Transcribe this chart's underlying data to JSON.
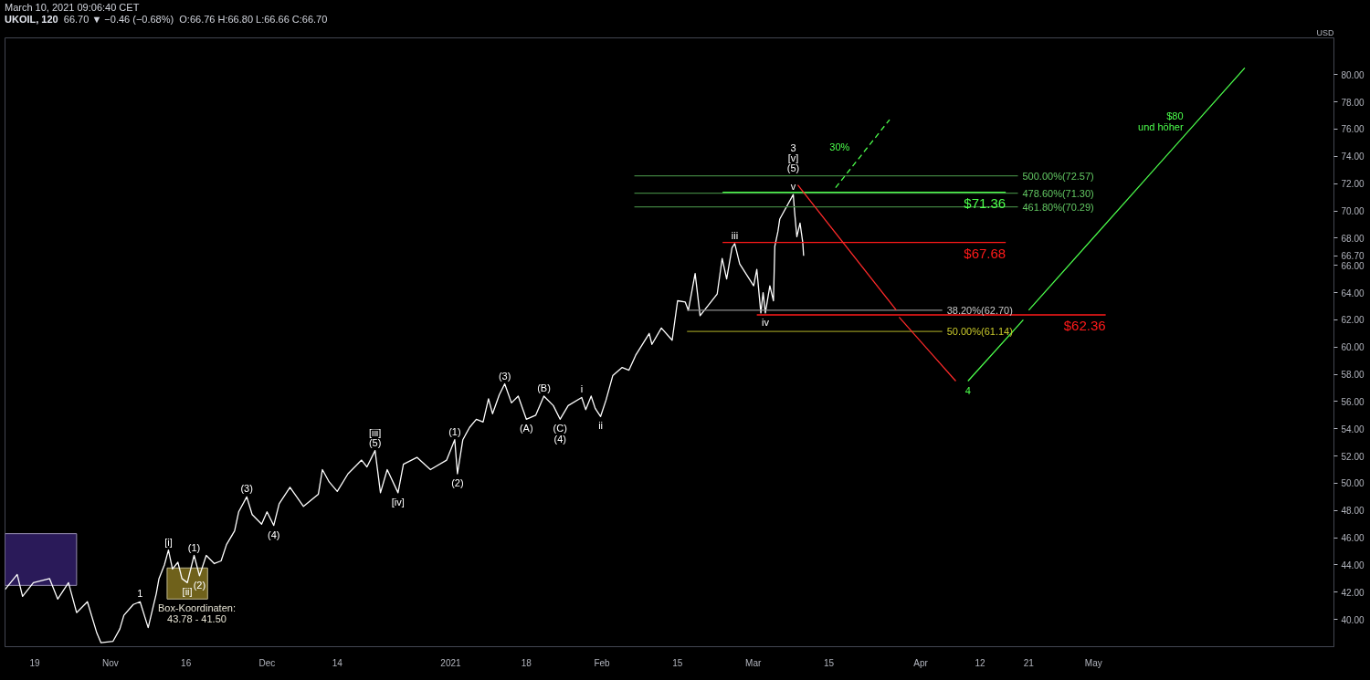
{
  "chart_data": {
    "type": "line",
    "title": "UKOIL, 120",
    "subtitle": "March 10, 2021 09:06:40 CET",
    "ylabel": "USD",
    "xlim": [
      "2020-10-13T12:00",
      "2021-06-16T12:00"
    ],
    "ylim": [
      38.0,
      82.7
    ],
    "xticks": [
      {
        "value": "2020-10-19",
        "label": "19"
      },
      {
        "value": "2020-11-02",
        "label": "Nov"
      },
      {
        "value": "2020-11-16",
        "label": "16"
      },
      {
        "value": "2020-12-01",
        "label": "Dec"
      },
      {
        "value": "2020-12-14",
        "label": "14"
      },
      {
        "value": "2021-01-04",
        "label": "2021"
      },
      {
        "value": "2021-01-18",
        "label": "18"
      },
      {
        "value": "2021-02-01",
        "label": "Feb"
      },
      {
        "value": "2021-02-15",
        "label": "15"
      },
      {
        "value": "2021-03-01",
        "label": "Mar"
      },
      {
        "value": "2021-03-15",
        "label": "15"
      },
      {
        "value": "2021-04-01",
        "label": "Apr"
      },
      {
        "value": "2021-04-12",
        "label": "12"
      },
      {
        "value": "2021-04-21",
        "label": "21"
      },
      {
        "value": "2021-05-03",
        "label": "May"
      }
    ],
    "yticks": [
      {
        "value": 40,
        "label": "40.00"
      },
      {
        "value": 42,
        "label": "42.00"
      },
      {
        "value": 44,
        "label": "44.00"
      },
      {
        "value": 46,
        "label": "46.00"
      },
      {
        "value": 48,
        "label": "48.00"
      },
      {
        "value": 50,
        "label": "50.00"
      },
      {
        "value": 52,
        "label": "52.00"
      },
      {
        "value": 54,
        "label": "54.00"
      },
      {
        "value": 56,
        "label": "56.00"
      },
      {
        "value": 58,
        "label": "58.00"
      },
      {
        "value": 60,
        "label": "60.00"
      },
      {
        "value": 62,
        "label": "62.00"
      },
      {
        "value": 64,
        "label": "64.00"
      },
      {
        "value": 66,
        "label": "66.00"
      },
      {
        "value": 66.7,
        "label": "66.70"
      },
      {
        "value": 68,
        "label": "68.00"
      },
      {
        "value": 70,
        "label": "70.00"
      },
      {
        "value": 72,
        "label": "72.00"
      },
      {
        "value": 74,
        "label": "74.00"
      },
      {
        "value": 76,
        "label": "76.00"
      },
      {
        "value": 78,
        "label": "78.00"
      },
      {
        "value": 80,
        "label": "80.00"
      }
    ],
    "series": [
      {
        "type": "area",
        "color": "#2f1d63",
        "x": [
          "2020-10-13T12:00",
          "2020-10-13T12:00",
          "2020-10-26T18:00",
          "2020-10-26T18:00",
          "2020-10-13T12:00"
        ],
        "values": [
          42.5,
          46.3,
          46.3,
          42.5,
          42.5
        ]
      },
      {
        "type": "area",
        "color": "#7b6c1e",
        "x": [
          "2020-11-12T12:00",
          "2020-11-12T12:00",
          "2020-11-20T00:00",
          "2020-11-20T00:00",
          "2020-11-12T12:00"
        ],
        "values": [
          41.5,
          43.78,
          43.78,
          41.5,
          41.5
        ]
      },
      {
        "color": "#ffffff",
        "x": [
          "2020-10-13T12:00",
          "2020-10-15T18:00",
          "2020-10-16T18:00",
          "2020-10-18T18:00",
          "2020-10-21T18:00",
          "2020-10-23T06:00",
          "2020-10-25T06:00",
          "2020-10-26T18:00",
          "2020-10-28T18:00",
          "2020-10-30T12:00",
          "2020-10-31T06:00",
          "2020-11-02T12:00",
          "2020-11-03T18:00",
          "2020-11-04T12:00",
          "2020-11-06T06:00",
          "2020-11-07T12:00",
          "2020-11-09T00:00",
          "2020-11-10T12:00",
          "2020-11-11T00:00",
          "2020-11-12T00:00",
          "2020-11-12T18:00",
          "2020-11-13T12:00",
          "2020-11-14T12:00",
          "2020-11-15T06:00",
          "2020-11-16T06:00",
          "2020-11-17T00:00",
          "2020-11-17T12:00",
          "2020-11-18T12:00",
          "2020-11-19T18:00",
          "2020-11-21T06:00",
          "2020-11-22T12:00",
          "2020-11-23T12:00",
          "2020-11-25T00:00",
          "2020-11-25T18:00",
          "2020-11-27T06:00",
          "2020-11-28T06:00",
          "2020-11-30T00:00",
          "2020-12-01T00:00",
          "2020-12-02T06:00",
          "2020-12-03T06:00",
          "2020-12-05T06:00",
          "2020-12-07T18:00",
          "2020-12-10T12:00",
          "2020-12-11T06:00",
          "2020-12-12T12:00",
          "2020-12-14T00:00",
          "2020-12-16T00:00",
          "2020-12-18T12:00",
          "2020-12-19T12:00",
          "2020-12-21T00:00",
          "2020-12-22T00:00",
          "2020-12-23T06:00",
          "2020-12-25T06:00",
          "2020-12-26T06:00",
          "2020-12-28T18:00",
          "2020-12-31T06:00",
          "2021-01-03T06:00",
          "2021-01-04T18:00",
          "2021-01-05T06:00",
          "2021-01-06T06:00",
          "2021-01-07T12:00",
          "2021-01-08T18:00",
          "2021-01-10T00:00",
          "2021-01-11T00:00",
          "2021-01-11T18:00",
          "2021-01-13T00:00",
          "2021-01-14T00:00",
          "2021-01-15T06:00",
          "2021-01-16T12:00",
          "2021-01-18T00:00",
          "2021-01-19T18:00",
          "2021-01-21T06:00",
          "2021-01-23T00:00",
          "2021-01-24T06:00",
          "2021-01-25T18:00",
          "2021-01-28T06:00",
          "2021-01-29T00:00",
          "2021-01-30T00:00",
          "2021-01-30T18:00",
          "2021-01-31T18:00",
          "2021-02-01T18:00",
          "2021-02-03T00:00",
          "2021-02-04T18:00",
          "2021-02-06T00:00",
          "2021-02-07T06:00",
          "2021-02-09T18:00",
          "2021-02-10T06:00",
          "2021-02-12T00:00",
          "2021-02-14T00:00",
          "2021-02-15T00:00",
          "2021-02-16T10:00",
          "2021-02-17T00:00",
          "2021-02-18T06:00",
          "2021-02-19T04:00",
          "2021-02-22T08:00",
          "2021-02-23T06:00",
          "2021-02-24T02:00",
          "2021-02-25T02:00",
          "2021-02-25T14:00",
          "2021-02-26T12:00",
          "2021-03-01T02:00",
          "2021-03-01T16:00",
          "2021-03-02T10:00",
          "2021-03-02T20:00",
          "2021-03-03T06:00",
          "2021-03-04T02:00",
          "2021-03-04T18:00",
          "2021-03-05T00:00",
          "2021-03-05T14:00",
          "2021-03-05T22:00",
          "2021-03-08T10:00",
          "2021-03-08T16:00",
          "2021-03-09T02:00",
          "2021-03-09T16:00",
          "2021-03-10T04:00",
          "2021-03-10T08:00"
        ],
        "values": [
          42.2,
          43.3,
          41.7,
          42.7,
          43.0,
          41.5,
          42.7,
          40.5,
          41.3,
          39.0,
          38.3,
          38.4,
          39.3,
          40.3,
          41.1,
          41.3,
          39.4,
          41.9,
          43.0,
          44.0,
          45.1,
          43.7,
          44.2,
          43.0,
          42.7,
          43.9,
          44.7,
          43.2,
          44.7,
          44.1,
          44.3,
          45.5,
          46.5,
          47.9,
          49.0,
          47.7,
          47.0,
          47.9,
          46.9,
          48.5,
          49.7,
          48.3,
          49.2,
          51.0,
          50.1,
          49.4,
          50.7,
          51.7,
          51.2,
          52.4,
          49.3,
          51.0,
          49.3,
          51.4,
          51.9,
          51.0,
          51.7,
          53.2,
          50.7,
          53.2,
          54.1,
          54.7,
          54.5,
          56.2,
          55.1,
          56.5,
          57.3,
          55.9,
          56.4,
          54.7,
          55.0,
          56.4,
          55.7,
          54.7,
          55.7,
          56.3,
          55.4,
          56.4,
          55.5,
          54.9,
          56.1,
          57.9,
          58.5,
          58.3,
          59.4,
          61.0,
          60.2,
          61.4,
          60.5,
          63.4,
          63.3,
          62.7,
          65.4,
          62.3,
          63.9,
          66.5,
          65.0,
          67.3,
          67.6,
          66.1,
          64.5,
          65.7,
          62.5,
          64.0,
          62.5,
          64.5,
          63.4,
          67.4,
          68.5,
          69.4,
          71.2,
          69.9,
          68.1,
          69.1,
          67.7,
          66.7
        ]
      },
      {
        "color": "#3f7f3f",
        "x": [
          "2021-02-07T00:00",
          "2021-04-19T00:00"
        ],
        "values": [
          72.57,
          72.57
        ]
      },
      {
        "color": "#3f7f3f",
        "x": [
          "2021-02-07T00:00",
          "2021-04-19T00:00"
        ],
        "values": [
          71.3,
          71.3
        ]
      },
      {
        "color": "#3f7f3f",
        "x": [
          "2021-02-07T00:00",
          "2021-04-19T00:00"
        ],
        "values": [
          70.29,
          70.29
        ]
      },
      {
        "color": "#8c8c8c",
        "x": [
          "2021-02-16T18:00",
          "2021-04-05T00:00"
        ],
        "values": [
          62.7,
          62.7
        ]
      },
      {
        "color": "#8f8f1f",
        "x": [
          "2021-02-16T18:00",
          "2021-04-05T00:00"
        ],
        "values": [
          61.14,
          61.14
        ]
      },
      {
        "name": "$71.36",
        "color": "#4cff4c",
        "x": [
          "2021-02-23T08:00",
          "2021-04-16T18:00"
        ],
        "values": [
          71.36,
          71.36
        ]
      },
      {
        "name": "$67.68",
        "color": "#ff1a1a",
        "x": [
          "2021-02-23T08:00",
          "2021-04-16T18:00"
        ],
        "values": [
          67.68,
          67.68
        ]
      },
      {
        "name": "$62.36",
        "color": "#ff1a1a",
        "x": [
          "2021-03-01T16:00",
          "2021-05-05T06:00"
        ],
        "values": [
          62.36,
          62.36
        ]
      },
      {
        "color": "#ff2a2a",
        "x": [
          "2021-03-09T06:00",
          "2021-03-27T12:00"
        ],
        "values": [
          71.9,
          62.7
        ]
      },
      {
        "color": "#ff2a2a",
        "x": [
          "2021-03-28T00:00",
          "2021-04-07T12:00"
        ],
        "values": [
          62.2,
          57.5
        ]
      },
      {
        "color": "#4cff4c",
        "x": [
          "2021-04-09T18:00",
          "2021-04-20T00:00"
        ],
        "values": [
          57.5,
          62.0
        ]
      },
      {
        "color": "#4cff4c",
        "x": [
          "2021-04-21T00:00",
          "2021-05-31T00:00"
        ],
        "values": [
          62.7,
          80.5
        ]
      },
      {
        "color": "#4cff4c",
        "line_style": "dashed",
        "x": [
          "2021-03-16T06:00",
          "2021-03-26T06:00"
        ],
        "values": [
          71.7,
          76.7
        ]
      }
    ],
    "annotations": [
      "66.70 ▼ −0.46 (−0.68%)",
      "O:66.76 H:66.80 L:66.66 C:66.70",
      {
        "text": "1",
        "x": "2020-11-07T12:00",
        "y": 41.3
      },
      {
        "text": "[i]",
        "x": "2020-11-12T18:00",
        "y": 45.1
      },
      {
        "text": "(1)",
        "x": "2020-11-17T12:00",
        "y": 44.7
      },
      {
        "text": "[ii]",
        "x": "2020-11-16T06:00",
        "y": 42.7
      },
      {
        "text": "(2)",
        "x": "2020-11-18T12:00",
        "y": 43.2
      },
      {
        "text": "Box-Koordinaten:",
        "x": "2020-11-18T00:00",
        "y": 41.5
      },
      {
        "text": "43.78 - 41.50",
        "x": "2020-11-18T00:00",
        "y": 41.5
      },
      {
        "text": "(3)",
        "x": "2020-11-27T06:00",
        "y": 49.0
      },
      {
        "text": "(4)",
        "x": "2020-12-02T06:00",
        "y": 46.9
      },
      {
        "text": "(5)",
        "x": "2020-12-21T00:00",
        "y": 52.4
      },
      {
        "text": "[iii]",
        "x": "2020-12-21T00:00",
        "y": 52.4
      },
      {
        "text": "[iv]",
        "x": "2020-12-25T06:00",
        "y": 49.3
      },
      {
        "text": "(1)",
        "x": "2021-01-04T18:00",
        "y": 53.2
      },
      {
        "text": "(2)",
        "x": "2021-01-05T06:00",
        "y": 50.7
      },
      {
        "text": "(3)",
        "x": "2021-01-14T00:00",
        "y": 57.3
      },
      {
        "text": "(A)",
        "x": "2021-01-18T00:00",
        "y": 54.7
      },
      {
        "text": "(B)",
        "x": "2021-01-21T06:00",
        "y": 56.4
      },
      {
        "text": "(C)",
        "x": "2021-01-24T06:00",
        "y": 54.7
      },
      {
        "text": "(4)",
        "x": "2021-01-24T06:00",
        "y": 54.7
      },
      {
        "text": "i",
        "x": "2021-01-28T06:00",
        "y": 56.3
      },
      {
        "text": "ii",
        "x": "2021-01-31T18:00",
        "y": 54.9
      },
      {
        "text": "iii",
        "x": "2021-02-25T14:00",
        "y": 67.6
      },
      {
        "text": "iv",
        "x": "2021-03-03T06:00",
        "y": 62.5
      },
      {
        "text": "v",
        "x": "2021-03-08T10:00",
        "y": 71.2
      },
      {
        "text": "(5)",
        "x": "2021-03-08T10:00",
        "y": 72.57
      },
      {
        "text": "[v]",
        "x": "2021-03-08T10:00",
        "y": 72.57
      },
      {
        "text": "3",
        "x": "2021-03-08T10:00",
        "y": 72.57
      },
      {
        "text": "30%",
        "x": "2021-03-22T06:00",
        "y": 74.7
      },
      {
        "text": "500.00%(72.57)",
        "x": "2021-04-19T00:00",
        "y": 72.57
      },
      {
        "text": "478.60%(71.30)",
        "x": "2021-04-19T00:00",
        "y": 71.3
      },
      {
        "text": "461.80%(70.29)",
        "x": "2021-04-19T00:00",
        "y": 70.29
      },
      {
        "text": "38.20%(62.70)",
        "x": "2021-04-05T00:00",
        "y": 62.7
      },
      {
        "text": "50.00%(61.14)",
        "x": "2021-04-05T00:00",
        "y": 61.14
      },
      {
        "text": "4",
        "x": "2021-04-09T18:00",
        "y": 57.5
      },
      {
        "text": "$80",
        "x": "2021-05-23T00:00",
        "y": 76.94
      },
      {
        "text": "und höher",
        "x": "2021-05-23T00:00",
        "y": 76.94
      }
    ]
  }
}
